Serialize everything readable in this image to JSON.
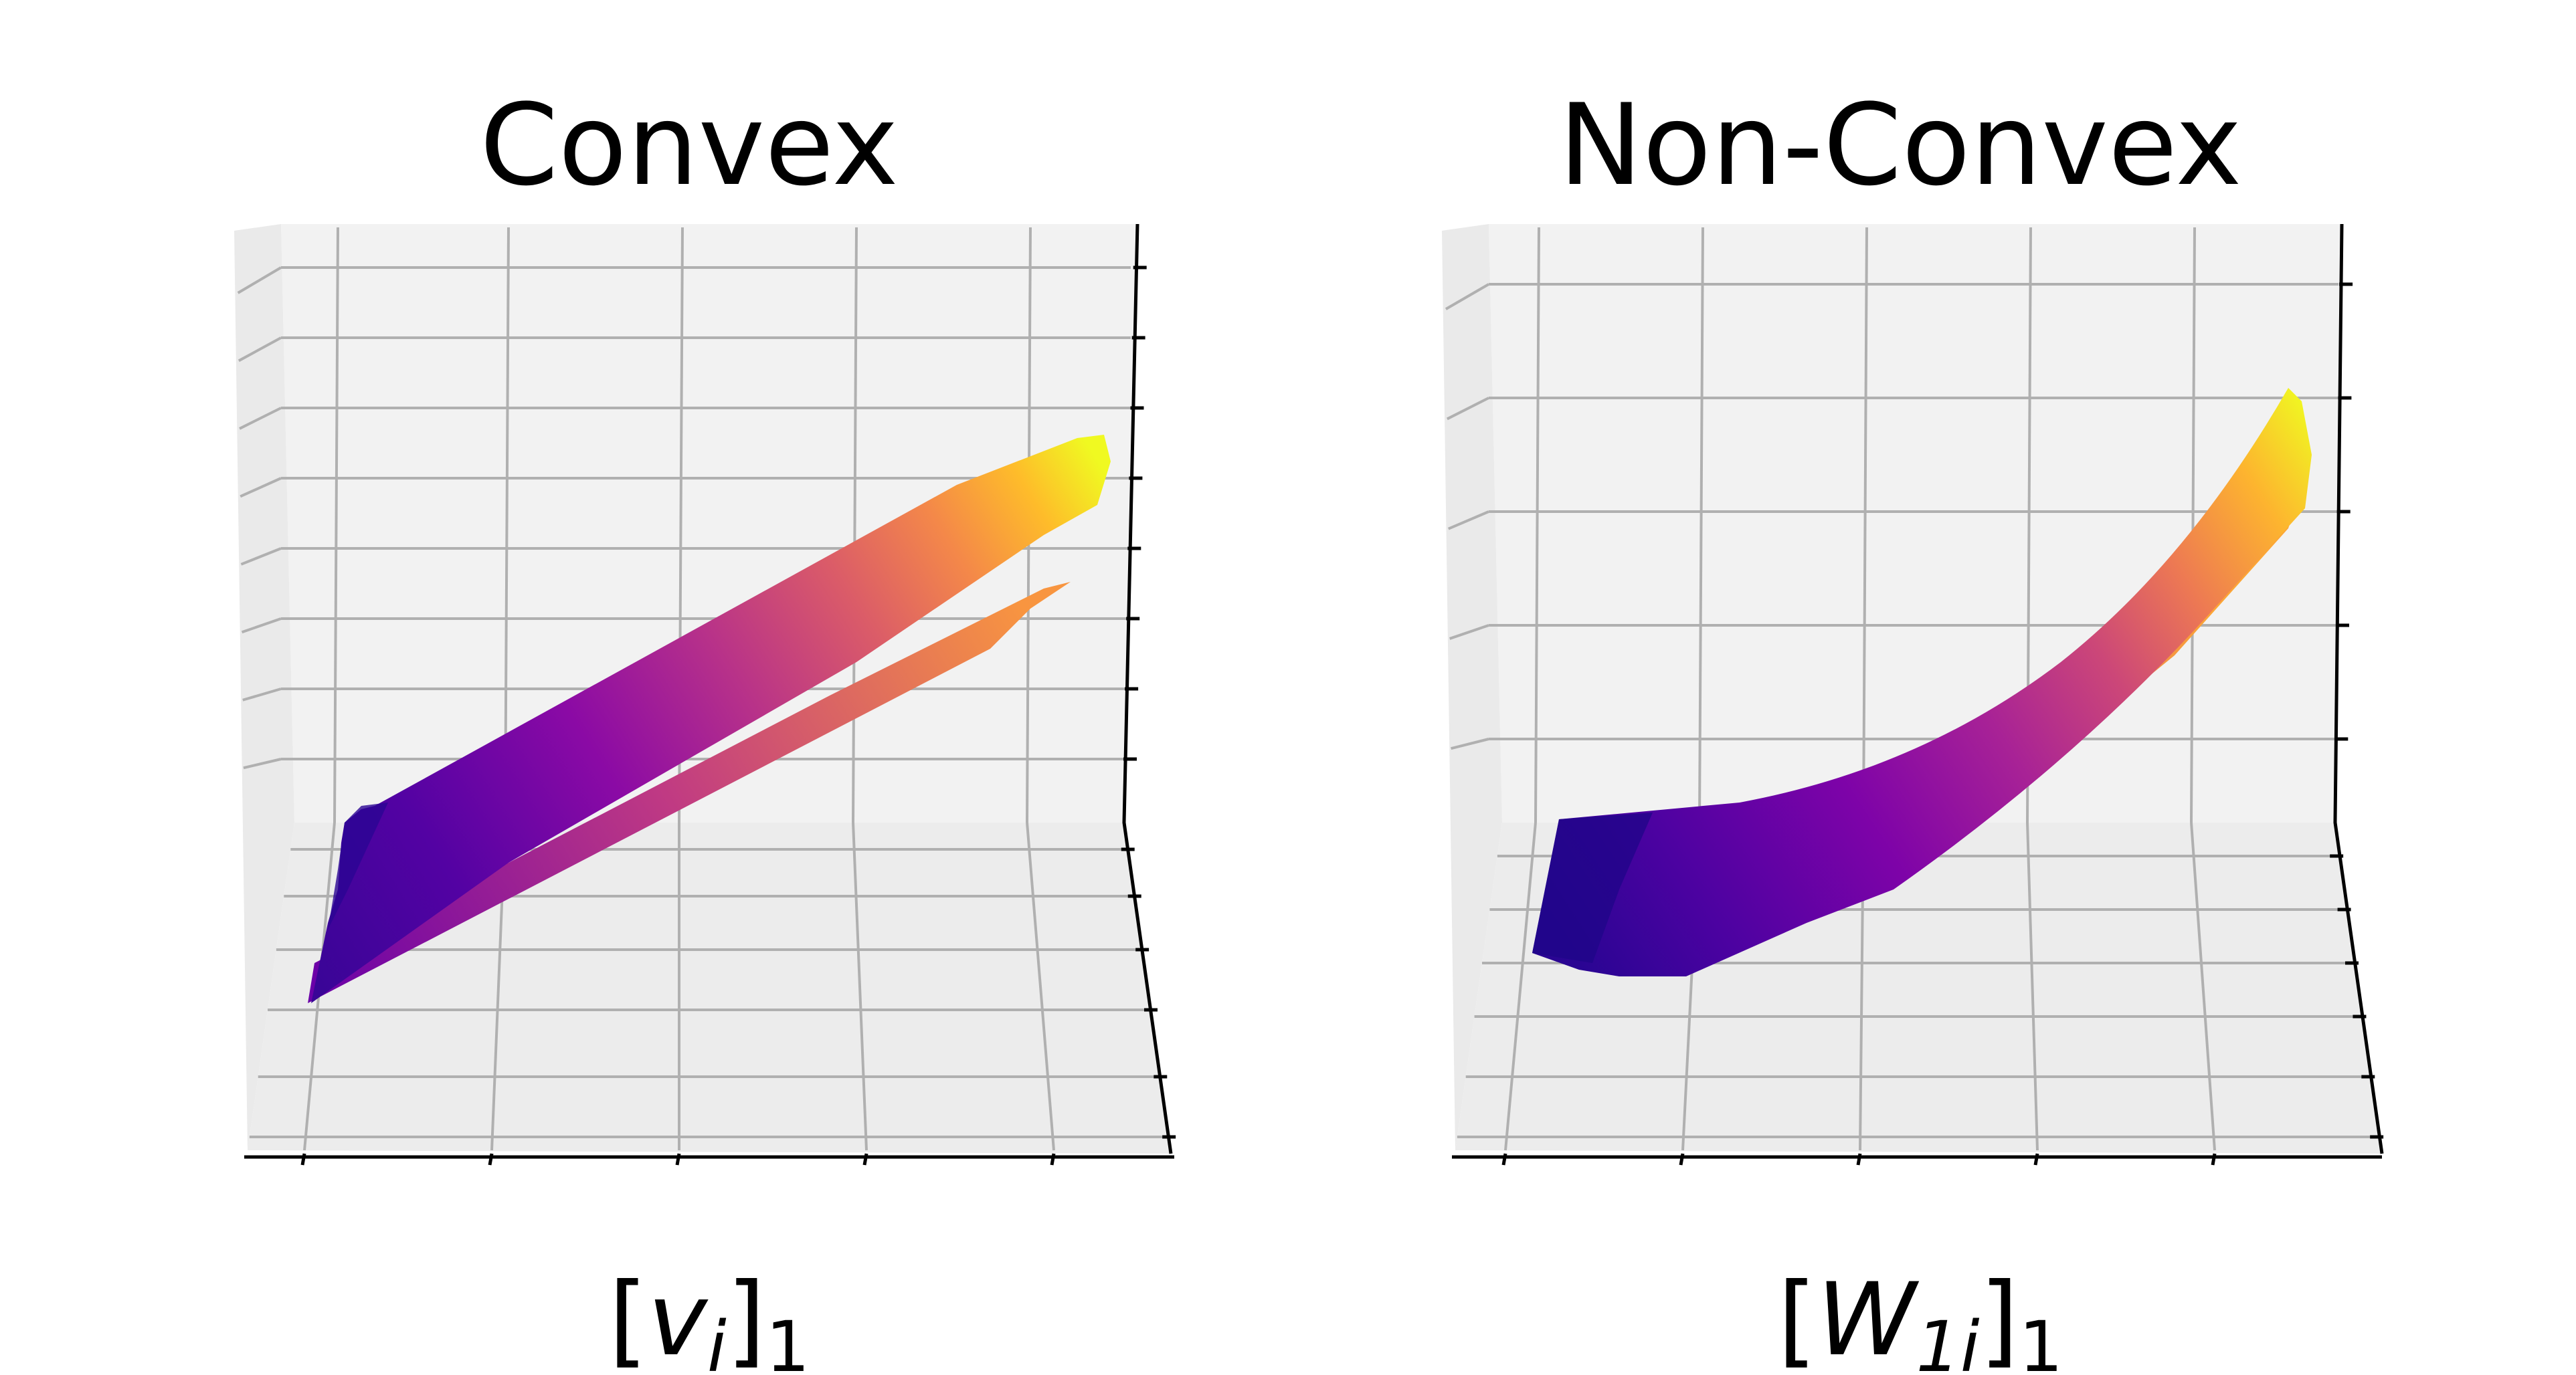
{
  "chart_data": [
    {
      "type": "surface3d",
      "title": "Convex",
      "xlabel_main": "[v",
      "xlabel_sub": "i",
      "xlabel_close": "]",
      "xlabel_outer_sub": "1",
      "ylabel": "",
      "zlabel": "",
      "colormap": "plasma",
      "pane_color": "#f2f2f2",
      "grid": true,
      "shape": "linear",
      "colormap_stops": [
        "#0d0887",
        "#5302a3",
        "#8b0aa5",
        "#b83289",
        "#db5c68",
        "#f48849",
        "#febc2a",
        "#f0f921"
      ]
    },
    {
      "type": "surface3d",
      "title": "Non-Convex",
      "xlabel_main": "[W",
      "xlabel_sub": "1i",
      "xlabel_close": "]",
      "xlabel_outer_sub": "1",
      "ylabel": "",
      "zlabel": "",
      "colormap": "plasma",
      "pane_color": "#f2f2f2",
      "grid": true,
      "shape": "curved",
      "colormap_stops": [
        "#0d0887",
        "#5302a3",
        "#8b0aa5",
        "#b83289",
        "#db5c68",
        "#f48849",
        "#febc2a",
        "#f0f921"
      ]
    }
  ]
}
